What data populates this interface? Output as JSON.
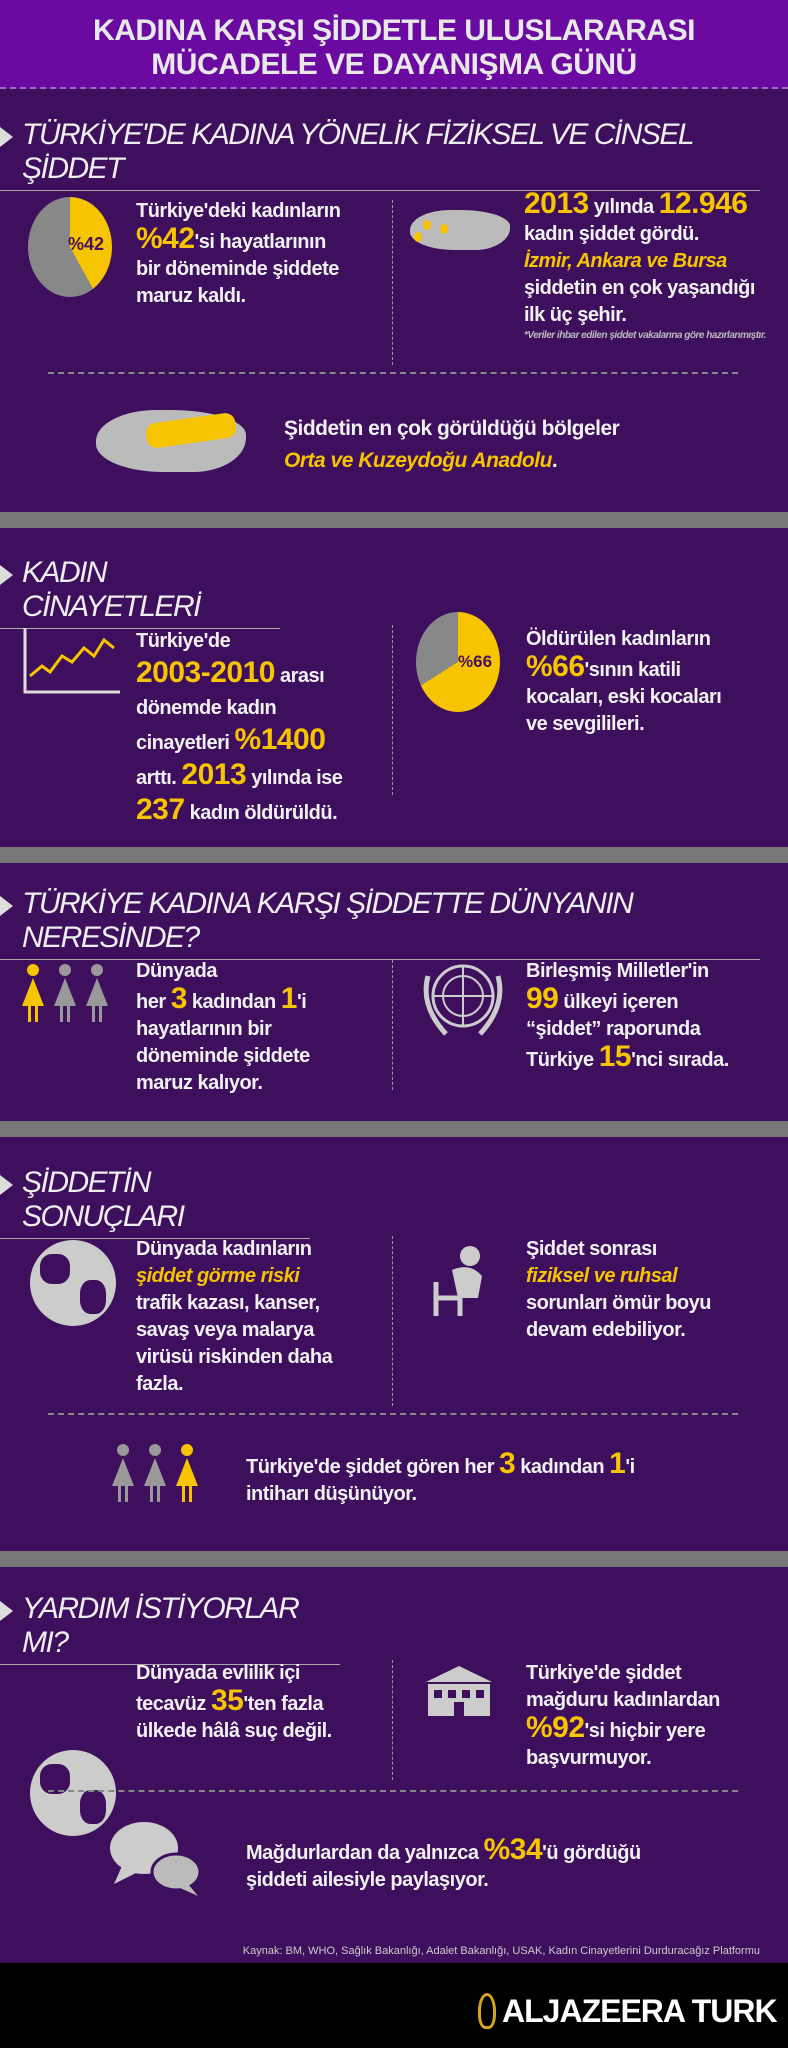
{
  "header": {
    "line1": "KADINA KARŞI ŞİDDETLE ULUSLARARASI",
    "line2": "MÜCADELE VE DAYANIŞMA GÜNÜ"
  },
  "colors": {
    "accent": "#f6c400",
    "header_bg": "#6b0aa0",
    "body_bg": "#3d0f5c",
    "separator": "#777777"
  },
  "s1": {
    "title": "TÜRKİYE'DE KADINA YÖNELİK FİZİKSEL VE CİNSEL ŞİDDET",
    "pie_label": "%42",
    "pie_value": 42,
    "left": {
      "a": "Türkiye'deki kadınların",
      "pct": "%42",
      "b": "'si hayatlarının",
      "c": "bir döneminde şiddete",
      "d": "maruz kaldı."
    },
    "right": {
      "year": "2013",
      "a": " yılında ",
      "count": "12.946",
      "b": "kadın şiddet gördü.",
      "cities": "İzmir, Ankara ve Bursa",
      "c": "şiddetin en çok yaşandığı",
      "d": "ilk üç şehir.",
      "note": "*Veriler ihbar edilen şiddet vakalarına göre hazırlanmıştır."
    },
    "region": {
      "a": "Şiddetin en çok görüldüğü bölgeler",
      "b": "Orta ve Kuzeydoğu Anadolu",
      "c": "."
    }
  },
  "s2": {
    "title": "KADIN CİNAYETLERİ",
    "left": {
      "a": "Türkiye'de",
      "range": "2003-2010",
      "b": " arası",
      "c": "dönemde kadın",
      "d": "cinayetleri ",
      "pct": "%1400",
      "e": "arttı. ",
      "year": "2013",
      "f": " yılında ise",
      "num": "237",
      "g": " kadın öldürüldü."
    },
    "pie_label": "%66",
    "pie_value": 66,
    "right": {
      "a": "Öldürülen kadınların",
      "pct": "%66",
      "b": "'sının katili",
      "c": "kocaları, eski kocaları",
      "d": "ve sevgilileri."
    }
  },
  "s3": {
    "title": "TÜRKİYE KADINA KARŞI ŞİDDETTE DÜNYANIN NERESİNDE?",
    "left": {
      "a": "Dünyada",
      "b": "her ",
      "n3": "3",
      "c": " kadından ",
      "n1": "1",
      "d": "'i",
      "e": "hayatlarının bir",
      "f": "döneminde şiddete",
      "g": "maruz kalıyor."
    },
    "right": {
      "a": "Birleşmiş Milletler'in",
      "n": "99",
      "b": " ülkeyi içeren",
      "c": "“şiddet” raporunda",
      "d": "Türkiye ",
      "rank": "15",
      "e": "'nci sırada."
    }
  },
  "s4": {
    "title": "ŞİDDETİN SONUÇLARI",
    "left": {
      "a": "Dünyada kadınların",
      "risk": "şiddet görme riski",
      "b": "trafik kazası, kanser,",
      "c": "savaş veya malarya",
      "d": "virüsü riskinden daha",
      "e": "fazla."
    },
    "right": {
      "a": "Şiddet sonrası",
      "hl": "fiziksel ve ruhsal",
      "b": "sorunları ömür boyu",
      "c": "devam edebiliyor."
    },
    "bottom": {
      "a": "Türkiye'de şiddet gören her ",
      "n3": "3",
      "b": " kadından ",
      "n1": "1",
      "c": "'i",
      "d": "intiharı düşünüyor."
    }
  },
  "s5": {
    "title": "YARDIM İSTİYORLAR MI?",
    "left": {
      "a": "Dünyada evlilik içi",
      "b": "tecavüz ",
      "n": "35",
      "c": "'ten fazla",
      "d": "ülkede hâlâ suç değil."
    },
    "right": {
      "a": "Türkiye'de şiddet",
      "b": "mağduru kadınlardan",
      "pct": "%92",
      "c": "'si hiçbir yere",
      "d": "başvurmuyor."
    },
    "bottom": {
      "a": "Mağdurlardan da yalnızca ",
      "pct": "%34",
      "b": "'ü gördüğü",
      "c": "şiddeti ailesiyle paylaşıyor."
    }
  },
  "footer": {
    "source": "Kaynak: BM, WHO, Sağlık Bakanlığı, Adalet Bakanlığı, USAK, Kadın Cinayetlerini Durduracağız Platformu",
    "logo": "ALJAZEERA TURK"
  }
}
